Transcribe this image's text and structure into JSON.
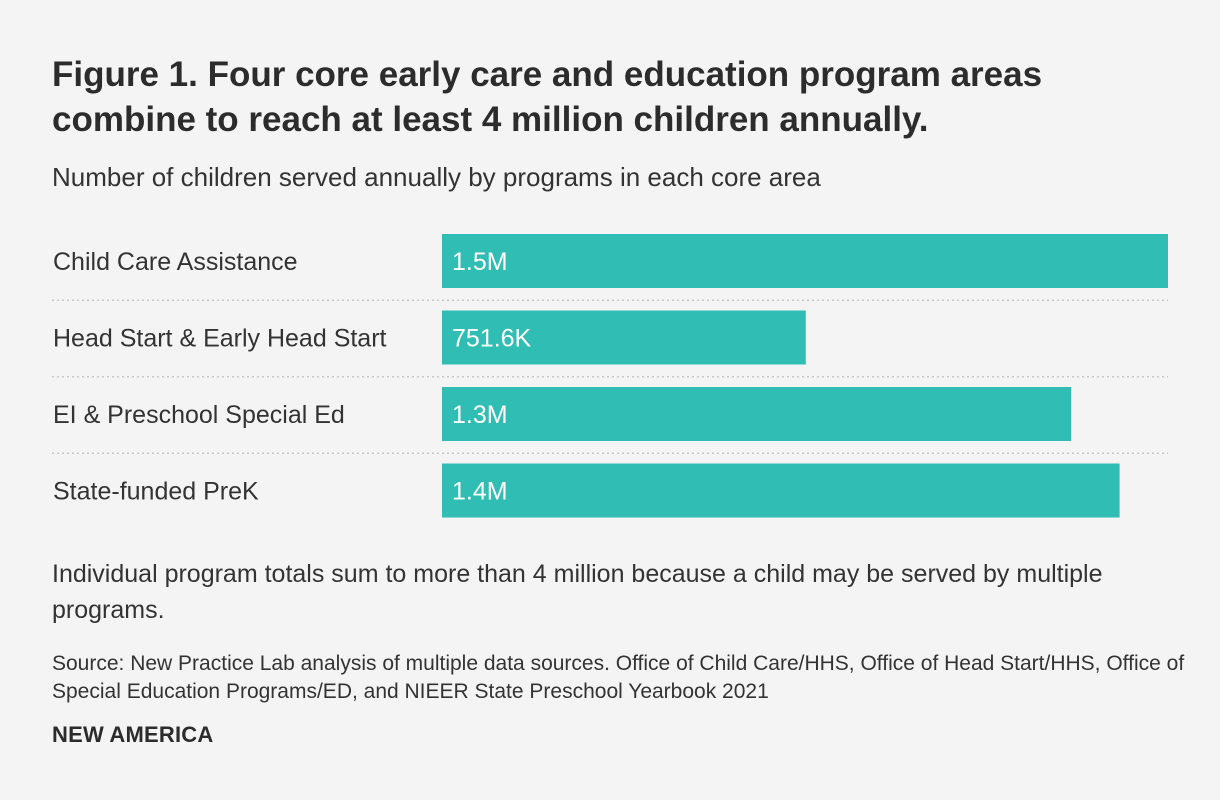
{
  "chart_data": {
    "type": "bar",
    "orientation": "horizontal",
    "title": "Figure 1. Four core early care and education program areas combine to reach at least 4 million children annually.",
    "subtitle": "Number of children served annually by programs in each core area",
    "categories": [
      "Child Care Assistance",
      "Head Start & Early Head Start",
      "EI & Preschool Special Ed",
      "State-funded PreK"
    ],
    "values": [
      1500000,
      751600,
      1300000,
      1400000
    ],
    "value_labels": [
      "1.5M",
      "751.6K",
      "1.3M",
      "1.4M"
    ],
    "xlim": [
      0,
      1500000
    ],
    "grid": false,
    "bar_color": "#2fbdb4",
    "note": "Individual program totals sum to more than 4 million because a child may be served by multiple programs.",
    "source": "Source: New Practice Lab analysis of multiple data sources. Office of Child Care/HHS, Office of Head Start/HHS, Office of Special Education Programs/ED, and NIEER State Preschool Yearbook 2021"
  },
  "brand": "NEW AMERICA",
  "colors": {
    "background": "#f4f4f4",
    "bar": "#2fbdb4",
    "text": "#333333",
    "separator": "#c8c8c8"
  }
}
